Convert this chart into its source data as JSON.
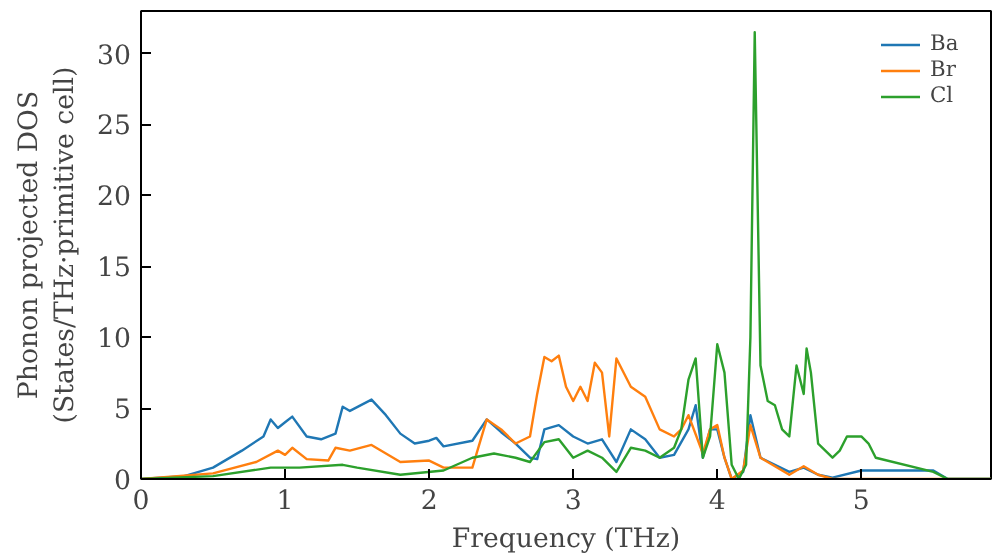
{
  "chart_data": {
    "type": "line",
    "xlabel": "Frequency (THz)",
    "ylabel": "Phonon projected DOS\n(States/THz·primitive cell)",
    "xlim": [
      0,
      5.9
    ],
    "ylim": [
      0,
      33
    ],
    "xticks": [
      0,
      1,
      2,
      3,
      4,
      5
    ],
    "yticks": [
      0,
      5,
      10,
      15,
      20,
      25,
      30
    ],
    "grid": false,
    "legend": "top right",
    "series": [
      {
        "name": "Ba",
        "color": "#1f77b4",
        "x": [
          0,
          0.3,
          0.5,
          0.7,
          0.85,
          0.9,
          0.95,
          1.0,
          1.05,
          1.15,
          1.25,
          1.35,
          1.4,
          1.45,
          1.6,
          1.7,
          1.8,
          1.9,
          2.0,
          2.05,
          2.1,
          2.3,
          2.4,
          2.5,
          2.6,
          2.7,
          2.75,
          2.8,
          2.9,
          3.0,
          3.1,
          3.2,
          3.3,
          3.4,
          3.5,
          3.6,
          3.7,
          3.8,
          3.85,
          3.9,
          3.95,
          4.0,
          4.05,
          4.1,
          4.18,
          4.23,
          4.3,
          4.4,
          4.5,
          4.6,
          4.7,
          4.8,
          5.0,
          5.5,
          5.6,
          5.9
        ],
        "values": [
          0,
          0.2,
          0.8,
          2,
          3,
          4.2,
          3.6,
          4,
          4.4,
          3,
          2.8,
          3.2,
          5.1,
          4.8,
          5.6,
          4.5,
          3.2,
          2.5,
          2.7,
          2.9,
          2.3,
          2.7,
          4.2,
          3.3,
          2.5,
          1.5,
          1.4,
          3.5,
          3.8,
          3.0,
          2.5,
          2.8,
          1.2,
          3.5,
          2.8,
          1.5,
          1.7,
          3.5,
          5.2,
          1.5,
          3.5,
          3.5,
          1.5,
          0,
          0.5,
          4.5,
          1.5,
          1.0,
          0.5,
          0.8,
          0.3,
          0.1,
          0.6,
          0.6,
          0,
          0
        ]
      },
      {
        "name": "Br",
        "color": "#ff7f0e",
        "x": [
          0,
          0.5,
          0.8,
          0.95,
          1.0,
          1.05,
          1.15,
          1.3,
          1.35,
          1.45,
          1.6,
          1.8,
          2.0,
          2.1,
          2.3,
          2.4,
          2.5,
          2.6,
          2.7,
          2.75,
          2.8,
          2.85,
          2.9,
          2.95,
          3.0,
          3.05,
          3.1,
          3.15,
          3.2,
          3.25,
          3.3,
          3.4,
          3.5,
          3.6,
          3.7,
          3.75,
          3.8,
          3.9,
          3.95,
          4.0,
          4.05,
          4.1,
          4.18,
          4.23,
          4.3,
          4.5,
          4.6,
          4.7,
          4.8,
          5.9
        ],
        "values": [
          0,
          0.4,
          1.2,
          2.0,
          1.7,
          2.2,
          1.4,
          1.3,
          2.2,
          2.0,
          2.4,
          1.2,
          1.3,
          0.8,
          0.8,
          4.2,
          3.5,
          2.5,
          3.0,
          6,
          8.6,
          8.3,
          8.7,
          6.5,
          5.5,
          6.5,
          5.5,
          8.2,
          7.5,
          3,
          8.5,
          6.5,
          5.8,
          3.5,
          3.0,
          3.5,
          4.5,
          1.8,
          3.5,
          3.8,
          1.5,
          0,
          0.6,
          3.8,
          1.5,
          0.3,
          0.9,
          0.3,
          0,
          0
        ]
      },
      {
        "name": "Cl",
        "color": "#2ca02c",
        "x": [
          0,
          0.5,
          0.9,
          1.1,
          1.4,
          1.5,
          1.8,
          2.1,
          2.3,
          2.45,
          2.6,
          2.7,
          2.8,
          2.9,
          3.0,
          3.1,
          3.2,
          3.3,
          3.4,
          3.5,
          3.6,
          3.7,
          3.75,
          3.8,
          3.85,
          3.9,
          3.95,
          4.0,
          4.05,
          4.1,
          4.15,
          4.2,
          4.23,
          4.26,
          4.3,
          4.35,
          4.4,
          4.45,
          4.5,
          4.55,
          4.6,
          4.62,
          4.65,
          4.7,
          4.8,
          4.85,
          4.9,
          5.0,
          5.05,
          5.1,
          5.5,
          5.6,
          5.7,
          5.9
        ],
        "values": [
          0,
          0.2,
          0.8,
          0.8,
          1.0,
          0.8,
          0.3,
          0.6,
          1.5,
          1.8,
          1.5,
          1.2,
          2.6,
          2.8,
          1.5,
          2.0,
          1.5,
          0.5,
          2.2,
          2.0,
          1.5,
          2.2,
          3.5,
          7,
          8.5,
          1.5,
          3.0,
          9.5,
          7.5,
          1.0,
          0,
          1.0,
          10,
          31.5,
          8,
          5.5,
          5.2,
          3.5,
          3.0,
          8,
          6,
          9.2,
          7.5,
          2.5,
          1.5,
          2,
          3.0,
          3.0,
          2.5,
          1.5,
          0.5,
          0,
          0,
          0
        ]
      }
    ]
  }
}
